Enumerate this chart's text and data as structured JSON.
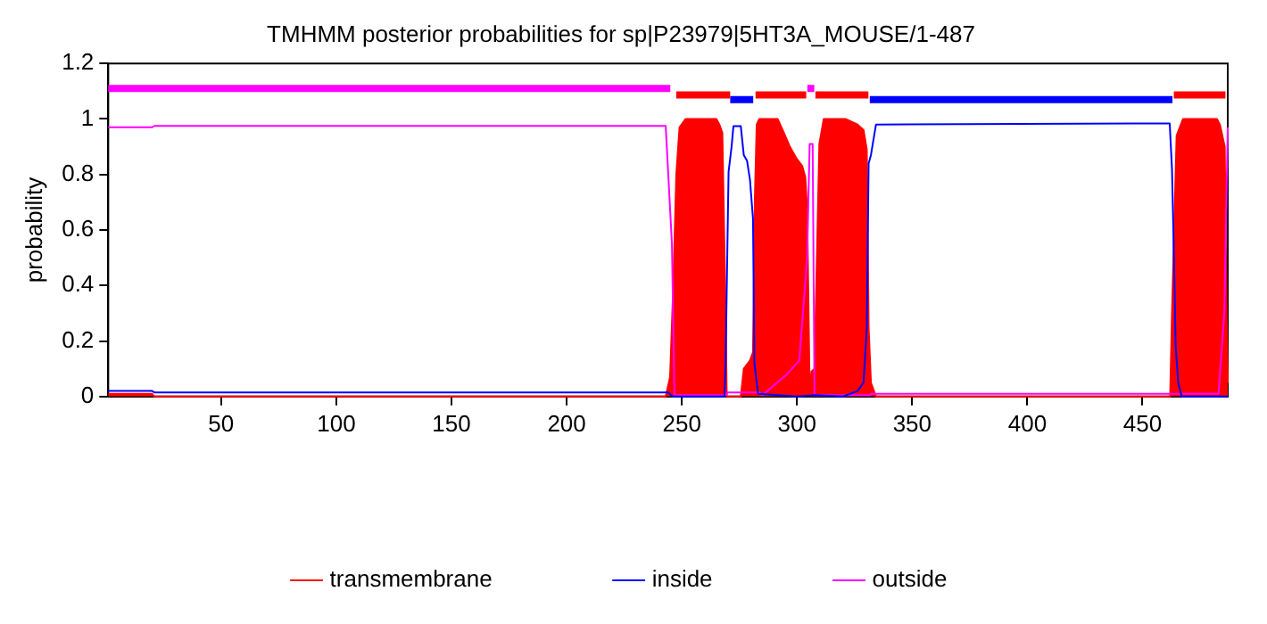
{
  "chart_data": {
    "type": "line",
    "title": "TMHMM posterior probabilities for sp|P23979|5HT3A_MOUSE/1-487",
    "ylabel": "probability",
    "xlim": [
      1,
      487
    ],
    "xticks": [
      50,
      100,
      150,
      200,
      250,
      300,
      350,
      400,
      450
    ],
    "ylim": [
      0,
      1.2
    ],
    "yticks": [
      0,
      0.2,
      0.4,
      0.6,
      0.8,
      1,
      1.2
    ],
    "grid": false,
    "legend": "bottom",
    "marker": "none",
    "line_style": "solid",
    "series": [
      {
        "name": "transmembrane",
        "type": "area",
        "color": "#ff0000",
        "x": [
          1,
          20,
          21,
          243,
          244.9,
          246.3,
          247.6,
          249,
          251.6,
          265,
          266.3,
          267.6,
          269,
          269.5,
          275.6,
          276.9,
          279.6,
          280.9,
          281.7,
          282.5,
          283.6,
          291.6,
          294.3,
          296.9,
          299.6,
          302.3,
          303.6,
          304.4,
          305.5,
          306.3,
          307.6,
          309.7,
          311.6,
          321,
          326.3,
          328.9,
          330.3,
          331.1,
          332.1,
          334.3,
          462,
          462.8,
          464.8,
          467.6,
          482.3,
          483.6,
          485.7,
          486.5,
          487
        ],
        "values": [
          0.01,
          0.01,
          0,
          0,
          0.07,
          0.4,
          0.8,
          0.97,
          1.0,
          1.0,
          0.98,
          0.95,
          0.3,
          0,
          0,
          0.1,
          0.13,
          0.16,
          0.71,
          0.98,
          1.0,
          1.0,
          0.95,
          0.9,
          0.86,
          0.83,
          0.79,
          0.68,
          0.02,
          0.09,
          0.1,
          0.91,
          1.0,
          1.0,
          0.98,
          0.96,
          0.89,
          0.25,
          0.05,
          0,
          0,
          0.3,
          0.94,
          1.0,
          1.0,
          0.98,
          0.9,
          0.3,
          0.05
        ]
      },
      {
        "name": "inside",
        "color": "#0000ff",
        "x": [
          1,
          20,
          21,
          244,
          246,
          268.5,
          269,
          269.8,
          270.3,
          271.6,
          272.4,
          275.6,
          276.9,
          278.3,
          279.6,
          280.9,
          281.5,
          283.1,
          300,
          308,
          320,
          326.3,
          328.9,
          330.3,
          331.1,
          332.1,
          334.3,
          461.8,
          462.8,
          463.6,
          464.4,
          465.5,
          467,
          487
        ],
        "values": [
          0.02,
          0.02,
          0.015,
          0.015,
          0.0,
          0.0,
          0.12,
          0.55,
          0.81,
          0.9,
          0.974,
          0.974,
          0.87,
          0.85,
          0.78,
          0.64,
          0.12,
          0.01,
          0.0,
          0.005,
          0.0,
          0.02,
          0.05,
          0.25,
          0.84,
          0.87,
          0.98,
          0.984,
          0.82,
          0.52,
          0.18,
          0.05,
          0.0,
          0.0
        ]
      },
      {
        "name": "outside",
        "color": "#ff00ff",
        "x": [
          1,
          20,
          21,
          243,
          245.7,
          246.8,
          269,
          270,
          283.6,
          285,
          295.6,
          301,
          304.4,
          305.5,
          306.8,
          307.6,
          331.6,
          332,
          483,
          485.5,
          487
        ],
        "values": [
          0.97,
          0.97,
          0.975,
          0.975,
          0.55,
          0.005,
          0.005,
          0.015,
          0.015,
          0.005,
          0.08,
          0.13,
          0.5,
          0.91,
          0.91,
          0.005,
          0.005,
          0.01,
          0.01,
          0.3,
          0.97
        ]
      },
      {
        "color": "#ff00ff",
        "x": [
          1,
          245
        ],
        "values": [
          1.11,
          1.11
        ]
      },
      {
        "color": "#ff0000",
        "x": [
          247.6,
          271,
          272,
          282,
          304,
          305,
          308,
          331,
          332,
          463.6,
          486
        ],
        "values": [
          1.087,
          1.087,
          null,
          1.087,
          1.087,
          null,
          1.087,
          1.087,
          null,
          1.087,
          1.087
        ]
      },
      {
        "color": "#0000ff",
        "x": [
          271,
          281,
          282,
          331.6,
          463
        ],
        "values": [
          1.07,
          1.07,
          null,
          1.07,
          1.07
        ]
      },
      {
        "color": "#ff00ff",
        "x": [
          304.5,
          307.5
        ],
        "values": [
          1.11,
          1.11
        ]
      }
    ]
  }
}
